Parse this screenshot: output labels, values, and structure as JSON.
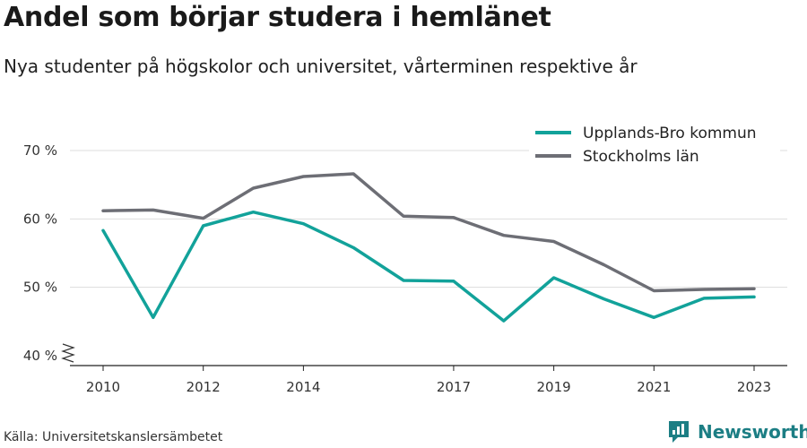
{
  "title": "Andel som börjar studera i hemlänet",
  "subtitle": "Nya studenter på högskolor och universitet, vårterminen respektive år",
  "source": "Källa: Universitetskanslersämbetet",
  "brand": {
    "name": "Newsworthy",
    "color": "#1c7e84"
  },
  "chart_data": {
    "type": "line",
    "x_ticks": [
      2010,
      2012,
      2014,
      2017,
      2019,
      2021,
      2023
    ],
    "y_ticks": [
      40,
      50,
      60,
      70
    ],
    "y_tick_labels": [
      "40 %",
      "50 %",
      "60 %",
      "70 %"
    ],
    "xlim": [
      2010,
      2023
    ],
    "ylim": [
      40,
      70
    ],
    "axis_break": true,
    "grid": true,
    "legend_position": "top-right",
    "series": [
      {
        "name": "Upplands-Bro kommun",
        "color": "#12a29a",
        "x": [
          2010,
          2011,
          2012,
          2013,
          2014,
          2015,
          2016,
          2017,
          2018,
          2019,
          2020,
          2021,
          2022,
          2023
        ],
        "y": [
          58.3,
          45.6,
          59.0,
          61.0,
          59.3,
          55.8,
          51.0,
          50.9,
          45.1,
          51.4,
          48.3,
          45.6,
          48.4,
          48.6
        ]
      },
      {
        "name": "Stockholms län",
        "color": "#6d6e75",
        "x": [
          2010,
          2011,
          2012,
          2013,
          2014,
          2015,
          2016,
          2017,
          2018,
          2019,
          2020,
          2021,
          2022,
          2023
        ],
        "y": [
          61.2,
          61.3,
          60.1,
          64.5,
          66.2,
          66.6,
          60.4,
          60.2,
          57.6,
          56.7,
          53.3,
          49.5,
          49.7,
          49.8
        ]
      }
    ]
  }
}
